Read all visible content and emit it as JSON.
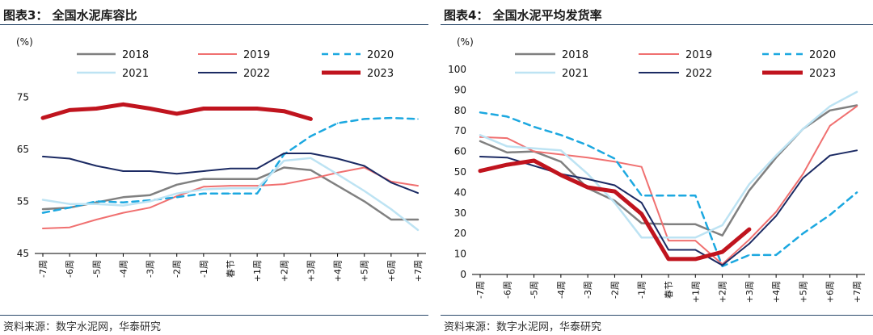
{
  "source": "资料来源：数字水泥网，华泰研究",
  "chart_data": [
    {
      "type": "line",
      "title": "图表3：  全国水泥库容比",
      "ylabel": "(%)",
      "ylim": [
        45,
        80
      ],
      "yticks": [
        45,
        55,
        65,
        75
      ],
      "categories": [
        "-7周",
        "-6周",
        "-5周",
        "-4周",
        "-3周",
        "-2周",
        "-1周",
        "春节",
        "+1周",
        "+2周",
        "+3周",
        "+4周",
        "+5周",
        "+6周",
        "+7周"
      ],
      "series": [
        {
          "name": "2018",
          "color": "#808080",
          "dash": "solid",
          "width": 2.5,
          "values": [
            53.5,
            53.8,
            54.8,
            55.8,
            56.2,
            58.2,
            59.3,
            59.3,
            59.3,
            61.5,
            61.0,
            58.0,
            55.0,
            51.5,
            51.5
          ]
        },
        {
          "name": "2019",
          "color": "#f07070",
          "dash": "solid",
          "width": 2,
          "values": [
            49.8,
            50.0,
            51.5,
            52.8,
            53.8,
            56.0,
            57.8,
            58.0,
            58.0,
            58.3,
            59.3,
            60.5,
            61.5,
            58.8,
            58.0
          ]
        },
        {
          "name": "2020",
          "color": "#1ca8e0",
          "dash": "dashed",
          "width": 2.5,
          "values": [
            52.8,
            53.8,
            55.0,
            54.8,
            55.2,
            55.8,
            56.5,
            56.5,
            56.5,
            64.0,
            67.5,
            70.0,
            70.8,
            71.0,
            70.8
          ]
        },
        {
          "name": "2021",
          "color": "#bde3f3",
          "dash": "solid",
          "width": 2.5,
          "values": [
            55.3,
            54.5,
            54.5,
            54.2,
            55.0,
            56.5,
            57.3,
            57.5,
            57.5,
            62.8,
            63.3,
            60.2,
            57.0,
            53.5,
            49.5
          ]
        },
        {
          "name": "2022",
          "color": "#1b2a63",
          "dash": "solid",
          "width": 2,
          "values": [
            63.6,
            63.2,
            61.8,
            60.8,
            60.8,
            60.3,
            60.8,
            61.3,
            61.3,
            64.2,
            64.2,
            63.2,
            61.8,
            58.6,
            56.6
          ]
        },
        {
          "name": "2023",
          "color": "#c0141e",
          "dash": "solid",
          "width": 5,
          "values": [
            71.0,
            72.5,
            72.8,
            73.6,
            72.8,
            71.8,
            72.8,
            72.8,
            72.8,
            72.3,
            70.8,
            null,
            null,
            null,
            null
          ]
        }
      ]
    },
    {
      "type": "line",
      "title": "图表4：  全国水泥平均发货率",
      "ylabel": "(%)",
      "ylim": [
        0,
        100
      ],
      "yticks": [
        0,
        10,
        20,
        30,
        40,
        50,
        60,
        70,
        80,
        90,
        100
      ],
      "categories": [
        "-7周",
        "-6周",
        "-5周",
        "-4周",
        "-3周",
        "-2周",
        "-1周",
        "春节",
        "+1周",
        "+2周",
        "+3周",
        "+4周",
        "+5周",
        "+6周",
        "+7周"
      ],
      "series": [
        {
          "name": "2018",
          "color": "#808080",
          "dash": "solid",
          "width": 2.5,
          "values": [
            65,
            59.5,
            60,
            55,
            42,
            36,
            25,
            24.5,
            24.5,
            19,
            41,
            57,
            71,
            80,
            82.5
          ]
        },
        {
          "name": "2019",
          "color": "#f07070",
          "dash": "solid",
          "width": 2,
          "values": [
            67,
            66.5,
            60,
            58.5,
            57,
            55,
            52.5,
            16.5,
            16.5,
            5,
            17,
            30.5,
            49,
            72.5,
            82
          ]
        },
        {
          "name": "2020",
          "color": "#1ca8e0",
          "dash": "dashed",
          "width": 2.5,
          "values": [
            79,
            77,
            72,
            68,
            63,
            56.5,
            38.5,
            38.5,
            38.5,
            4,
            9.5,
            9.5,
            20,
            29,
            40
          ]
        },
        {
          "name": "2021",
          "color": "#bde3f3",
          "dash": "solid",
          "width": 2.5,
          "values": [
            68,
            62.5,
            61.5,
            60.5,
            49,
            35,
            18,
            18,
            18,
            24,
            44,
            58,
            71,
            82,
            89
          ]
        },
        {
          "name": "2022",
          "color": "#1b2a63",
          "dash": "solid",
          "width": 2,
          "values": [
            57.5,
            57,
            53,
            49,
            46.5,
            43.5,
            35,
            12,
            12,
            4.5,
            15,
            28.5,
            47,
            58,
            60.5
          ]
        },
        {
          "name": "2023",
          "color": "#c0141e",
          "dash": "solid",
          "width": 5,
          "values": [
            50.5,
            53.5,
            55.5,
            48.5,
            42.5,
            40.5,
            29.5,
            7.5,
            7.5,
            11,
            22,
            null,
            null,
            null,
            null
          ]
        }
      ]
    }
  ]
}
